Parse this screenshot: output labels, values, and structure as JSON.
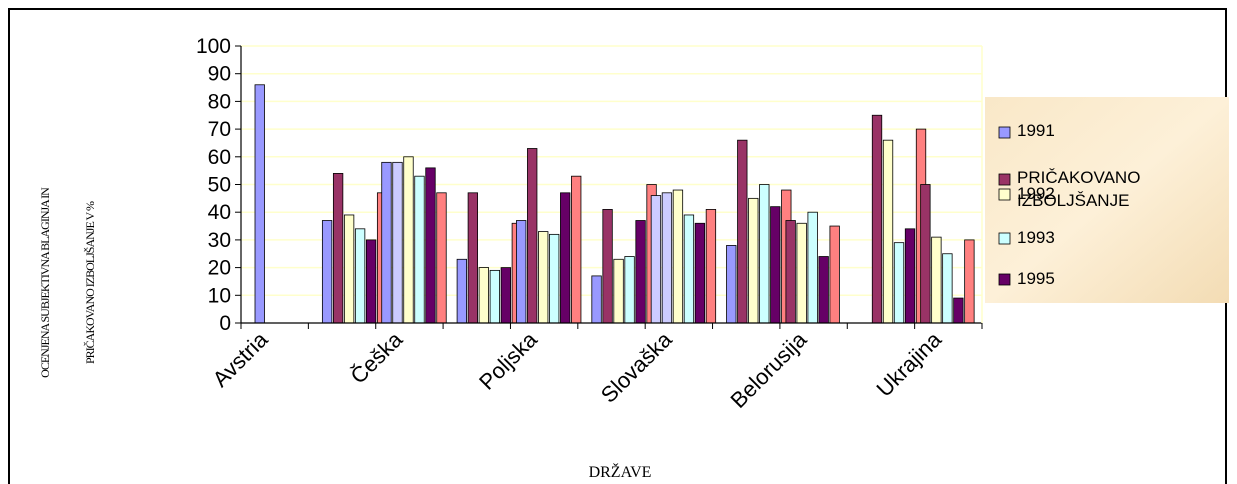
{
  "chart_data": {
    "type": "bar",
    "title": "",
    "xlabel": "DRŽAVE",
    "ylabel_lines": [
      "OCENJENA SUBJEKTIVNA BLAGINJA IN",
      "PRIČAKOVANO IZBOLJŠANJE V %"
    ],
    "ylim": [
      0,
      100
    ],
    "yticks": [
      "0",
      "10",
      "20",
      "30",
      "40",
      "50",
      "60",
      "70",
      "80",
      "90",
      "100"
    ],
    "categories": [
      "Avstria",
      "Češka",
      "Poljska",
      "Slovaška",
      "Belorusija",
      "Ukrajina"
    ],
    "grid": true,
    "legend_position": "right",
    "series": [
      {
        "name": "1991",
        "color": "#9999ff",
        "values": [
          86,
          37,
          23,
          17,
          28,
          null
        ]
      },
      {
        "name": "PRIČAKOVANO IZBOLJŠANJE",
        "color": "#993366",
        "values": [
          null,
          54,
          47,
          41,
          66,
          75
        ]
      },
      {
        "name": "1992",
        "color": "#ffffcc",
        "values": [
          null,
          39,
          20,
          23,
          45,
          66
        ]
      },
      {
        "name": "1993",
        "color": "#ccffff",
        "values": [
          null,
          34,
          19,
          24,
          50,
          29
        ]
      },
      {
        "name": "1995",
        "color": "#660066",
        "values": [
          null,
          30,
          20,
          37,
          42,
          34
        ]
      }
    ],
    "extra_groups": [
      {
        "values": [
          58,
          58,
          60,
          53,
          56,
          47
        ],
        "colors": [
          "#9999ff",
          "#ccccff",
          "#ffffcc",
          "#ccffff",
          "#660066",
          "#ff8080"
        ]
      },
      {
        "values": [
          37,
          63,
          33,
          32,
          47,
          53
        ],
        "colors": [
          "#9999ff",
          "#993366",
          "#ffffcc",
          "#ccffff",
          "#660066",
          "#ff8080"
        ]
      },
      {
        "values": [
          46,
          47,
          48,
          39,
          36,
          41
        ],
        "colors": [
          "#ccccff",
          "#ccccff",
          "#ffffcc",
          "#ccffff",
          "#660066",
          "#ff8080"
        ]
      },
      {
        "values": [
          37,
          36,
          40,
          24,
          35
        ],
        "colors": [
          "#993366",
          "#ffffcc",
          "#ccffff",
          "#660066",
          "#ff8080"
        ]
      },
      {
        "values": [
          50,
          31,
          25,
          9,
          30
        ],
        "colors": [
          "#993366",
          "#ffffcc",
          "#ccffff",
          "#660066",
          "#ff8080"
        ]
      }
    ],
    "extra_series_color": "#ff8080",
    "extra_values": [
      null,
      47,
      36,
      50,
      48,
      70
    ]
  },
  "legend": {
    "items": [
      {
        "label_lines": [
          "1991"
        ],
        "color": "#9999ff"
      },
      {
        "label_lines": [
          "PRIČAKOVANO",
          "IZBOLJŠANJE"
        ],
        "color": "#993366"
      },
      {
        "label_lines": [
          "1992"
        ],
        "color": "#ffffcc"
      },
      {
        "label_lines": [
          "1993"
        ],
        "color": "#ccffff"
      },
      {
        "label_lines": [
          "1995"
        ],
        "color": "#660066"
      }
    ]
  }
}
